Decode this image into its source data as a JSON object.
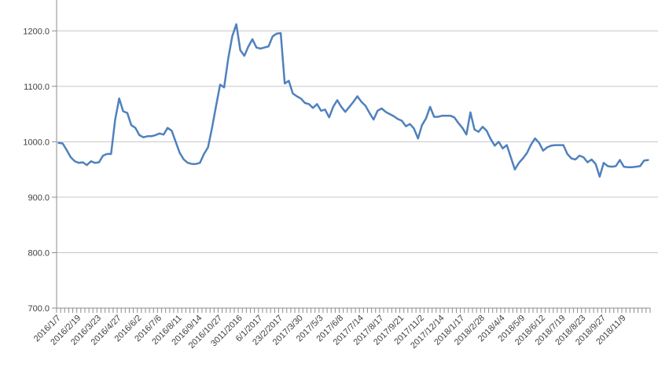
{
  "figure": {
    "title": "",
    "background": "#FFFFFF"
  },
  "colors": {
    "series_line": "#4F81BD",
    "gridline": "#C6C6C6",
    "axis_line": "#8C8C8C",
    "tick_mark": "#8C8C8C",
    "label_text": "#404040"
  },
  "chart_data": {
    "type": "line",
    "title": "",
    "xlabel": "",
    "ylabel": "",
    "legend": "none",
    "grid": "horizontal",
    "ylim": [
      700,
      1250
    ],
    "y_ticks": [
      700,
      800,
      900,
      1000,
      1100,
      1200
    ],
    "y_tick_labels": [
      "700.0",
      "800.0",
      "900.0",
      "1000.0",
      "1100.0",
      "1200.0"
    ],
    "x_label_interval": 5,
    "x_labels": [
      "2016/1/7",
      "2016/2/19",
      "2016/3/23",
      "2016/4/27",
      "2016/6/2",
      "2016/7/6",
      "2016/8/11",
      "2016/9/14",
      "2016/10/27",
      "3011/2016",
      "6/1/2017",
      "23/2/2017",
      "2017/3/30",
      "2017/5/3",
      "2017/6/8",
      "2017/7/14",
      "2017/8/17",
      "2017/9/21",
      "2017/11/2",
      "2017/12/14",
      "2018/1/17",
      "2018/2/28",
      "2018/4/4",
      "2018/5/9",
      "2018/6/12",
      "2018/7/19",
      "2018/8/23",
      "2018/9/27",
      "2018/11/9"
    ],
    "series": [
      {
        "name": "series-1",
        "color": "#4F81BD",
        "values": [
          998,
          997,
          985,
          972,
          965,
          962,
          963,
          958,
          965,
          962,
          963,
          975,
          978,
          978,
          1040,
          1078,
          1055,
          1052,
          1030,
          1025,
          1012,
          1008,
          1010,
          1010,
          1012,
          1015,
          1013,
          1025,
          1020,
          1000,
          980,
          968,
          962,
          960,
          960,
          962,
          978,
          990,
          1025,
          1065,
          1103,
          1098,
          1150,
          1190,
          1212,
          1165,
          1155,
          1172,
          1185,
          1170,
          1168,
          1170,
          1172,
          1190,
          1195,
          1196,
          1105,
          1110,
          1087,
          1082,
          1078,
          1070,
          1068,
          1061,
          1068,
          1056,
          1058,
          1044,
          1063,
          1075,
          1063,
          1054,
          1063,
          1072,
          1082,
          1072,
          1065,
          1052,
          1040,
          1056,
          1060,
          1054,
          1050,
          1046,
          1041,
          1038,
          1028,
          1032,
          1024,
          1006,
          1030,
          1042,
          1063,
          1045,
          1045,
          1047,
          1047,
          1047,
          1044,
          1034,
          1025,
          1013,
          1053,
          1022,
          1018,
          1027,
          1020,
          1005,
          993,
          1000,
          988,
          994,
          972,
          950,
          962,
          970,
          980,
          995,
          1006,
          998,
          984,
          990,
          993,
          994,
          994,
          994,
          978,
          970,
          968,
          975,
          972,
          963,
          968,
          960,
          937,
          962,
          956,
          955,
          956,
          967,
          955,
          954,
          954,
          955,
          956,
          966,
          967
        ]
      }
    ]
  }
}
